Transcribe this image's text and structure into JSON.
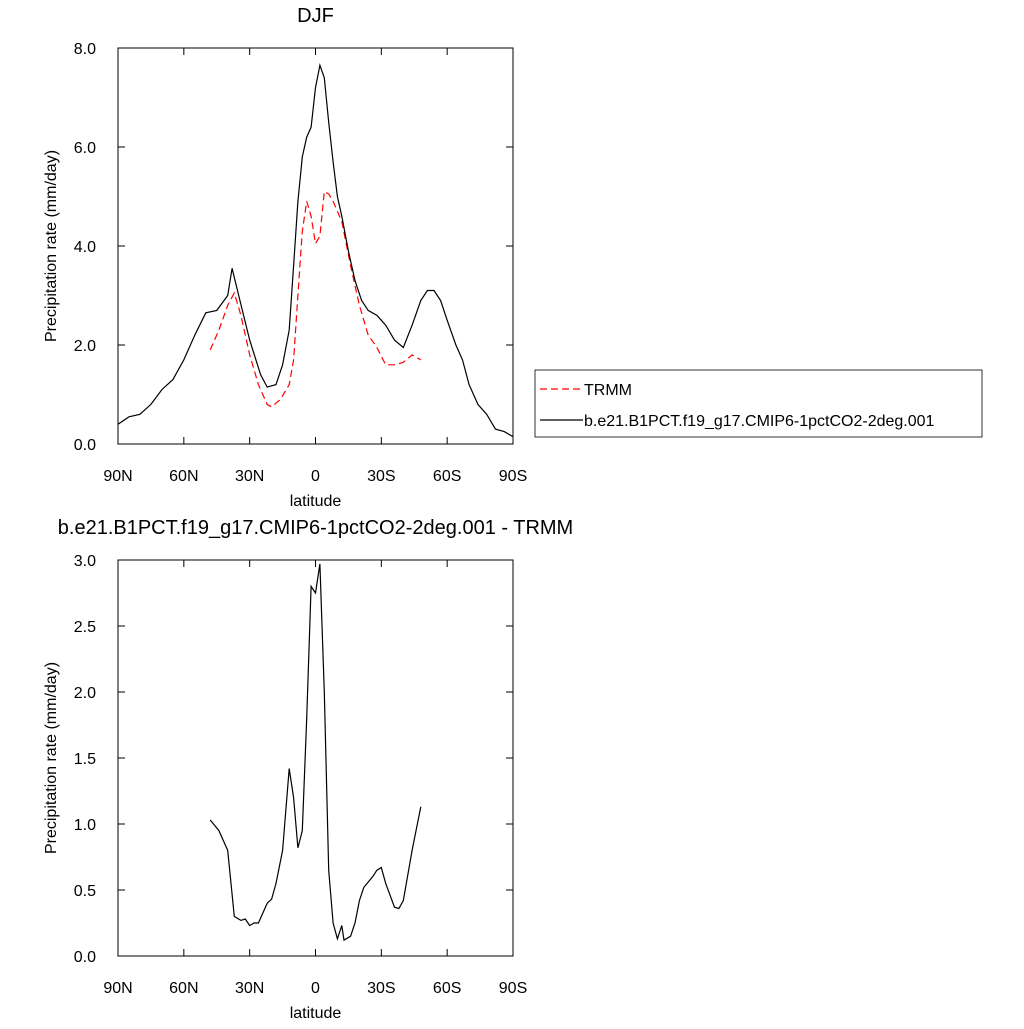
{
  "chart_data": [
    {
      "type": "line",
      "title": "DJF",
      "x_label": "latitude",
      "y_label": "Precipitation rate (mm/day)",
      "xlim": [
        90,
        -90
      ],
      "xticks": [
        {
          "value": 90,
          "label": "90N"
        },
        {
          "value": 60,
          "label": "60N"
        },
        {
          "value": 30,
          "label": "30N"
        },
        {
          "value": 0,
          "label": "0"
        },
        {
          "value": -30,
          "label": "30S"
        },
        {
          "value": -60,
          "label": "60S"
        },
        {
          "value": -90,
          "label": "90S"
        }
      ],
      "ylim": [
        0,
        8
      ],
      "yticks": [
        {
          "value": 0,
          "label": "0.0"
        },
        {
          "value": 2,
          "label": "2.0"
        },
        {
          "value": 4,
          "label": "4.0"
        },
        {
          "value": 6,
          "label": "6.0"
        },
        {
          "value": 8,
          "label": "8.0"
        }
      ],
      "legend": "right",
      "series": [
        {
          "name": "TRMM",
          "color": "#ff0000",
          "dashed": true,
          "x": [
            48,
            44,
            40,
            37,
            34,
            30,
            26,
            22,
            20,
            16,
            12,
            10,
            8,
            6,
            4,
            2,
            0,
            -2,
            -4,
            -6,
            -8,
            -12,
            -16,
            -20,
            -24,
            -28,
            -32,
            -36,
            -40,
            -44,
            -48
          ],
          "values": [
            1.9,
            2.3,
            2.8,
            3.05,
            2.6,
            1.8,
            1.2,
            0.8,
            0.75,
            0.9,
            1.2,
            1.7,
            3.0,
            4.3,
            4.9,
            4.6,
            4.05,
            4.2,
            5.1,
            5.05,
            4.9,
            4.5,
            3.6,
            2.8,
            2.2,
            1.95,
            1.6,
            1.6,
            1.65,
            1.8,
            1.7
          ]
        },
        {
          "name": "b.e21.B1PCT.f19_g17.CMIP6-1pctCO2-2deg.001",
          "color": "#000000",
          "dashed": false,
          "x": [
            90,
            85,
            80,
            75,
            70,
            65,
            60,
            55,
            50,
            45,
            40,
            38,
            35,
            30,
            25,
            22,
            18,
            15,
            12,
            10,
            8,
            6,
            4,
            2,
            0,
            -2,
            -4,
            -6,
            -8,
            -10,
            -12,
            -15,
            -18,
            -21,
            -24,
            -28,
            -32,
            -36,
            -40,
            -44,
            -48,
            -51,
            -54,
            -57,
            -60,
            -64,
            -67,
            -70,
            -74,
            -78,
            -82,
            -86,
            -90
          ],
          "values": [
            0.4,
            0.55,
            0.6,
            0.8,
            1.1,
            1.3,
            1.7,
            2.2,
            2.65,
            2.7,
            3.0,
            3.55,
            3.0,
            2.1,
            1.4,
            1.15,
            1.2,
            1.6,
            2.3,
            3.6,
            4.9,
            5.8,
            6.2,
            6.4,
            7.2,
            7.65,
            7.4,
            6.5,
            5.7,
            5.0,
            4.6,
            3.9,
            3.3,
            2.9,
            2.7,
            2.6,
            2.4,
            2.1,
            1.95,
            2.4,
            2.9,
            3.1,
            3.1,
            2.9,
            2.5,
            2.0,
            1.7,
            1.2,
            0.8,
            0.6,
            0.3,
            0.25,
            0.15
          ]
        }
      ]
    },
    {
      "type": "line",
      "title": "b.e21.B1PCT.f19_g17.CMIP6-1pctCO2-2deg.001 - TRMM",
      "x_label": "latitude",
      "y_label": "Precipitation rate (mm/day)",
      "xlim": [
        90,
        -90
      ],
      "xticks": [
        {
          "value": 90,
          "label": "90N"
        },
        {
          "value": 60,
          "label": "60N"
        },
        {
          "value": 30,
          "label": "30N"
        },
        {
          "value": 0,
          "label": "0"
        },
        {
          "value": -30,
          "label": "30S"
        },
        {
          "value": -60,
          "label": "60S"
        },
        {
          "value": -90,
          "label": "90S"
        }
      ],
      "ylim": [
        0,
        3
      ],
      "yticks": [
        {
          "value": 0,
          "label": "0.0"
        },
        0.5,
        {
          "value": 1,
          "label": "1.0"
        },
        1.5,
        {
          "value": 2,
          "label": "2.0"
        },
        2.5,
        {
          "value": 3,
          "label": "3.0"
        }
      ],
      "series": [
        {
          "color": "#000000",
          "dashed": false,
          "x": [
            48,
            44,
            40,
            37,
            34,
            32,
            30,
            28,
            26,
            22,
            20,
            18,
            15,
            12,
            10,
            8,
            6,
            4,
            2,
            0,
            -2,
            -4,
            -6,
            -8,
            -10,
            -12,
            -13,
            -16,
            -18,
            -20,
            -22,
            -26,
            -28,
            -30,
            -32,
            -36,
            -38,
            -40,
            -44,
            -48
          ],
          "values": [
            1.03,
            0.95,
            0.8,
            0.3,
            0.27,
            0.28,
            0.23,
            0.25,
            0.25,
            0.4,
            0.43,
            0.55,
            0.8,
            1.42,
            1.2,
            0.82,
            0.95,
            1.8,
            2.8,
            2.75,
            2.97,
            2.0,
            0.65,
            0.25,
            0.13,
            0.23,
            0.12,
            0.15,
            0.25,
            0.42,
            0.52,
            0.6,
            0.65,
            0.67,
            0.55,
            0.37,
            0.36,
            0.42,
            0.8,
            1.13
          ]
        }
      ]
    }
  ]
}
